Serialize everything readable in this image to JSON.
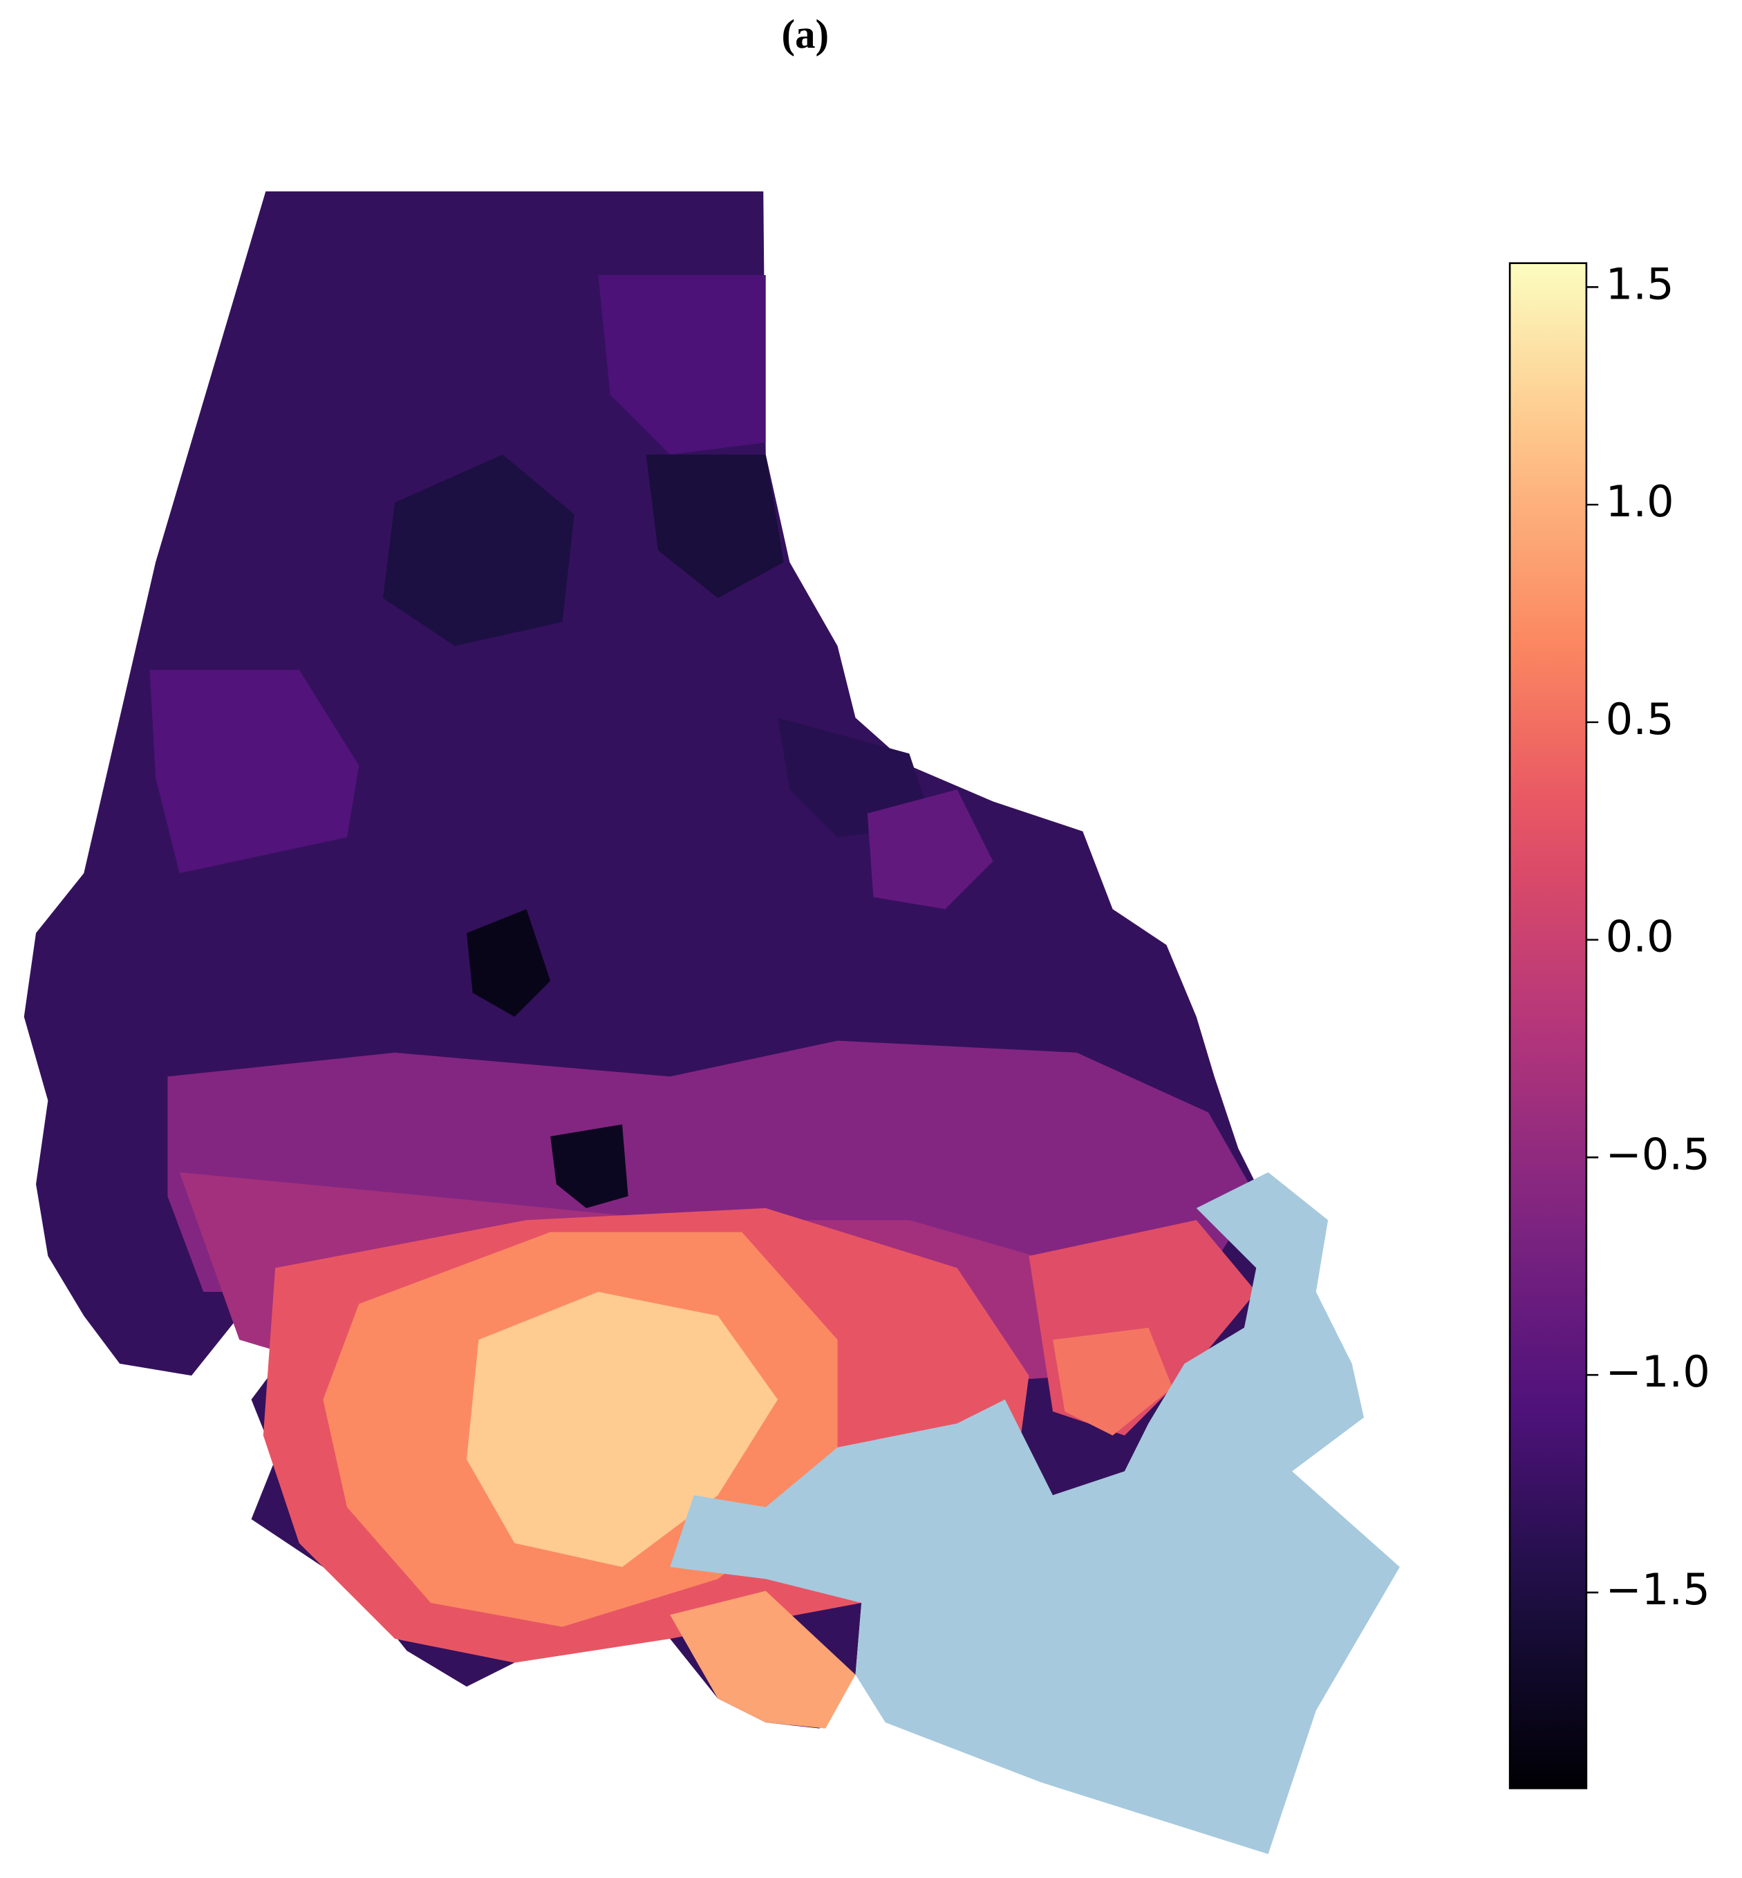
{
  "title": "(a)",
  "colorbar": {
    "lim": [
      -1.95,
      1.555
    ],
    "ticks": [
      {
        "value": 1.5,
        "label": "1.5"
      },
      {
        "value": 1.0,
        "label": "1.0"
      },
      {
        "value": 0.5,
        "label": "0.5"
      },
      {
        "value": 0.0,
        "label": "0.0"
      },
      {
        "value": -0.5,
        "label": "−0.5"
      },
      {
        "value": -1.0,
        "label": "−1.0"
      },
      {
        "value": -1.5,
        "label": "−1.5"
      }
    ],
    "colormap": "magma"
  },
  "regions": {
    "values": [
      -1.3,
      -1.05,
      -1.5,
      -1.1,
      -1.55,
      -1.4,
      -0.9,
      -0.6,
      -0.35,
      0.3,
      0.7,
      1.2,
      0.9,
      0.2,
      0.55,
      -0.3,
      -1.8,
      -1.75
    ]
  }
}
